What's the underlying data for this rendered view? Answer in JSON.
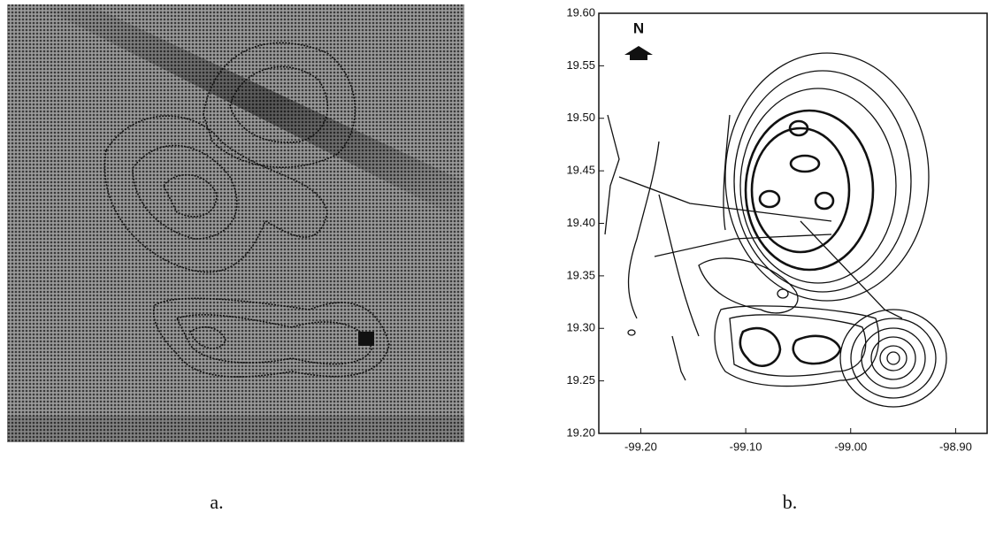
{
  "figure": {
    "panels": [
      {
        "caption": "a."
      },
      {
        "caption": "b.",
        "north_label": "N",
        "xlim": [
          -99.24,
          -98.87
        ],
        "ylim": [
          19.2,
          19.6
        ],
        "xticks": [
          {
            "value": -99.2,
            "label": "-99.20"
          },
          {
            "value": -99.1,
            "label": "-99.10"
          },
          {
            "value": -99.0,
            "label": "-99.00"
          },
          {
            "value": -98.9,
            "label": "-98.90"
          }
        ],
        "yticks": [
          {
            "value": 19.6,
            "label": "19.60"
          },
          {
            "value": 19.55,
            "label": "19.55"
          },
          {
            "value": 19.5,
            "label": "19.50"
          },
          {
            "value": 19.45,
            "label": "19.45"
          },
          {
            "value": 19.4,
            "label": "19.40"
          },
          {
            "value": 19.35,
            "label": "19.35"
          },
          {
            "value": 19.3,
            "label": "19.30"
          },
          {
            "value": 19.25,
            "label": "19.25"
          },
          {
            "value": 19.2,
            "label": "19.20"
          }
        ]
      }
    ]
  }
}
